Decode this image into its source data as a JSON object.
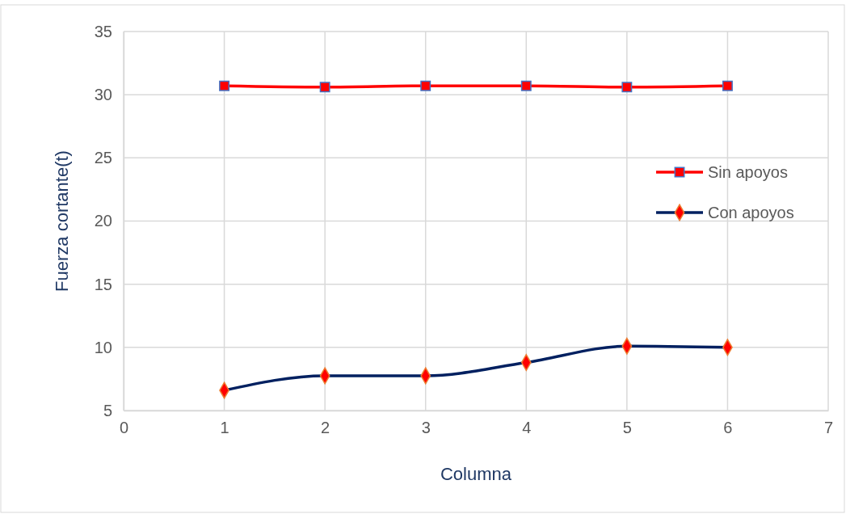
{
  "chart_data": {
    "type": "line",
    "xlabel": "Columna",
    "ylabel": "Fuerza cortante(t)",
    "x": [
      1,
      2,
      3,
      4,
      5,
      6
    ],
    "xlim": [
      0,
      7
    ],
    "xticks": [
      0,
      1,
      2,
      3,
      4,
      5,
      6,
      7
    ],
    "ylim": [
      5,
      35
    ],
    "yticks": [
      5,
      10,
      15,
      20,
      25,
      30,
      35
    ],
    "grid": true,
    "legend": "right",
    "series": [
      {
        "name": "Sin apoyos",
        "color": "#ff0000",
        "marker": "square",
        "values": [
          30.7,
          30.6,
          30.7,
          30.7,
          30.6,
          30.7
        ]
      },
      {
        "name": "Con apoyos",
        "color": "#002060",
        "marker": "diamond",
        "values": [
          6.6,
          7.75,
          7.75,
          8.8,
          10.1,
          10.0
        ]
      }
    ]
  }
}
